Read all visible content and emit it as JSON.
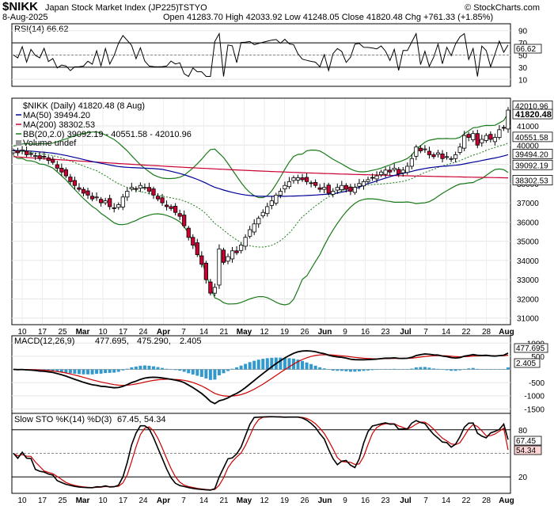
{
  "header": {
    "symbol": "$NIKK",
    "name": "Japan Stock Market Index (JP225)",
    "exchange": "TSTYO",
    "brand": "© StockCharts.com",
    "date": "8-Aug-2025",
    "ohlc": "Open 41283.70  High 42033.92  Low 41248.05  Close 41820.48  Chg +761.33 (+1.85%)"
  },
  "rsi_panel": {
    "legend": "RSI(14) 66.62",
    "value_label": "66.62",
    "ticks": [
      "90",
      "70",
      "50",
      "30",
      "10"
    ]
  },
  "price_panel": {
    "legend_main": "$NIKK (Daily) 41820.48 (8 Aug)",
    "legend_ma50": "MA(50) 39494.20",
    "legend_ma200": "MA(200) 38302.53",
    "legend_bb": "BB(20,2.0) 39092.19 - 40551.58 - 42010.96",
    "legend_vol": "Volume undef",
    "ticks": [
      "41000",
      "40000",
      "39000",
      "38000",
      "37000",
      "36000",
      "35000",
      "34000",
      "33000",
      "32000",
      "31000"
    ],
    "labels": [
      "42010.96",
      "41820.48",
      "40551.58",
      "39494.20",
      "39092.19",
      "38302.53"
    ]
  },
  "macd_panel": {
    "legend_name": "MACD(12,26,9)",
    "legend_macd": "477.695,",
    "legend_signal": "475.290,",
    "legend_hist": "2.405",
    "value_label": "477.695",
    "hist_label": "2.405",
    "ticks": [
      "1000",
      "500",
      "-500",
      "-1000",
      "-1500"
    ]
  },
  "sto_panel": {
    "legend_name": "Slow STO %K(14) %D(3)",
    "legend_k": "67.45,",
    "legend_d": "54.34",
    "k_label": "67.45",
    "d_label": "54.34",
    "ticks": [
      "80",
      "20"
    ]
  },
  "x_axis": {
    "labels": [
      {
        "t": "10",
        "bold": false
      },
      {
        "t": "17",
        "bold": false
      },
      {
        "t": "25",
        "bold": false
      },
      {
        "t": "Mar",
        "bold": true
      },
      {
        "t": "10",
        "bold": false
      },
      {
        "t": "17",
        "bold": false
      },
      {
        "t": "24",
        "bold": false
      },
      {
        "t": "Apr",
        "bold": true
      },
      {
        "t": "7",
        "bold": false
      },
      {
        "t": "14",
        "bold": false
      },
      {
        "t": "21",
        "bold": false
      },
      {
        "t": "May",
        "bold": true
      },
      {
        "t": "12",
        "bold": false
      },
      {
        "t": "19",
        "bold": false
      },
      {
        "t": "26",
        "bold": false
      },
      {
        "t": "Jun",
        "bold": true
      },
      {
        "t": "9",
        "bold": false
      },
      {
        "t": "16",
        "bold": false
      },
      {
        "t": "23",
        "bold": false
      },
      {
        "t": "Jul",
        "bold": true
      },
      {
        "t": "7",
        "bold": false
      },
      {
        "t": "14",
        "bold": false
      },
      {
        "t": "22",
        "bold": false
      },
      {
        "t": "28",
        "bold": false
      },
      {
        "t": "Aug",
        "bold": true
      }
    ]
  },
  "chart_data": [
    {
      "type": "candlestick",
      "panel": "price",
      "series_close": [
        39700,
        39600,
        39750,
        39500,
        39550,
        39450,
        39300,
        39400,
        39200,
        39100,
        38800,
        38600,
        38400,
        38100,
        37900,
        37700,
        37500,
        37400,
        37200,
        37300,
        37000,
        37100,
        36800,
        36700,
        36900,
        37300,
        37600,
        37800,
        37700,
        37900,
        37800,
        37600,
        37400,
        37200,
        37000,
        36800,
        36700,
        36500,
        36300,
        35800,
        35200,
        34800,
        34300,
        33800,
        33000,
        32300,
        32600,
        34600,
        33900,
        34200,
        34500,
        34400,
        34800,
        35200,
        35600,
        35900,
        36200,
        36500,
        36800,
        37100,
        37400,
        37600,
        37900,
        38100,
        38300,
        38300,
        38200,
        38100,
        38000,
        37900,
        37700,
        37800,
        37500,
        37600,
        37800,
        37900,
        37700,
        37600,
        37800,
        38000,
        38100,
        38200,
        38300,
        38400,
        38600,
        38700,
        38600,
        38800,
        38500,
        38700,
        38900,
        39300,
        39900,
        39700,
        39800,
        39500,
        39400,
        39600,
        39300,
        39400,
        39300,
        39500,
        39900,
        40500,
        40400,
        40600,
        40000,
        40300,
        40500,
        40300,
        40400,
        40800,
        40900,
        41820
      ],
      "ma50_endpoints": [
        [
          0,
          39800
        ],
        [
          114,
          39494.2
        ]
      ],
      "ma200_endpoints": [
        [
          0,
          39400
        ],
        [
          114,
          38302.53
        ]
      ],
      "bb_mid_last": 40551.58,
      "bb_upper_last": 42010.96,
      "bb_lower_last": 39092.19,
      "close_last": 41820.48,
      "ylim": [
        30700,
        42400
      ]
    },
    {
      "type": "line",
      "panel": "rsi",
      "name": "RSI(14)",
      "last": 66.62,
      "ylim": [
        0,
        100
      ],
      "reference_lines": [
        70,
        50,
        30
      ]
    },
    {
      "type": "bar+line",
      "panel": "macd",
      "series": [
        {
          "name": "MACD",
          "last": 477.695
        },
        {
          "name": "Signal",
          "last": 475.29
        },
        {
          "name": "Histogram",
          "last": 2.405
        }
      ],
      "ylim": [
        -1700,
        1250
      ]
    },
    {
      "type": "line",
      "panel": "stochastic",
      "series": [
        {
          "name": "%K(14)",
          "last": 67.45
        },
        {
          "name": "%D(3)",
          "last": 54.34
        }
      ],
      "ylim": [
        0,
        100
      ],
      "reference_lines": [
        80,
        20
      ]
    }
  ]
}
